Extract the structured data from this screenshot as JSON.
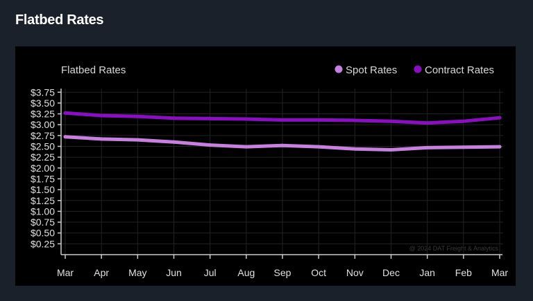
{
  "page": {
    "title": "Flatbed Rates"
  },
  "chart_data": {
    "type": "line",
    "title": "Flatbed Rates",
    "categories": [
      "Mar",
      "Apr",
      "May",
      "Jun",
      "Jul",
      "Aug",
      "Sep",
      "Oct",
      "Nov",
      "Dec",
      "Jan",
      "Feb",
      "Mar"
    ],
    "series": [
      {
        "name": "Spot Rates",
        "color": "#c77fe0",
        "values": [
          2.72,
          2.67,
          2.65,
          2.6,
          2.53,
          2.49,
          2.52,
          2.49,
          2.44,
          2.42,
          2.47,
          2.48,
          2.49
        ]
      },
      {
        "name": "Contract Rates",
        "color": "#8a0fc2",
        "values": [
          3.27,
          3.21,
          3.19,
          3.15,
          3.14,
          3.13,
          3.11,
          3.11,
          3.1,
          3.08,
          3.04,
          3.08,
          3.16
        ]
      }
    ],
    "yticks": [
      "$0.25",
      "$0.50",
      "$0.75",
      "$1.00",
      "$1.25",
      "$1.50",
      "$1.75",
      "$2.00",
      "$2.25",
      "$2.50",
      "$2.75",
      "$3.00",
      "$3.25",
      "$3.50",
      "$3.75"
    ],
    "ytick_values": [
      0.25,
      0.5,
      0.75,
      1.0,
      1.25,
      1.5,
      1.75,
      2.0,
      2.25,
      2.5,
      2.75,
      3.0,
      3.25,
      3.5,
      3.75
    ],
    "ylim": [
      0,
      3.85
    ],
    "grid": true,
    "legend": "top-right",
    "watermark": "@ 2024 DAT Freight & Analytics"
  }
}
